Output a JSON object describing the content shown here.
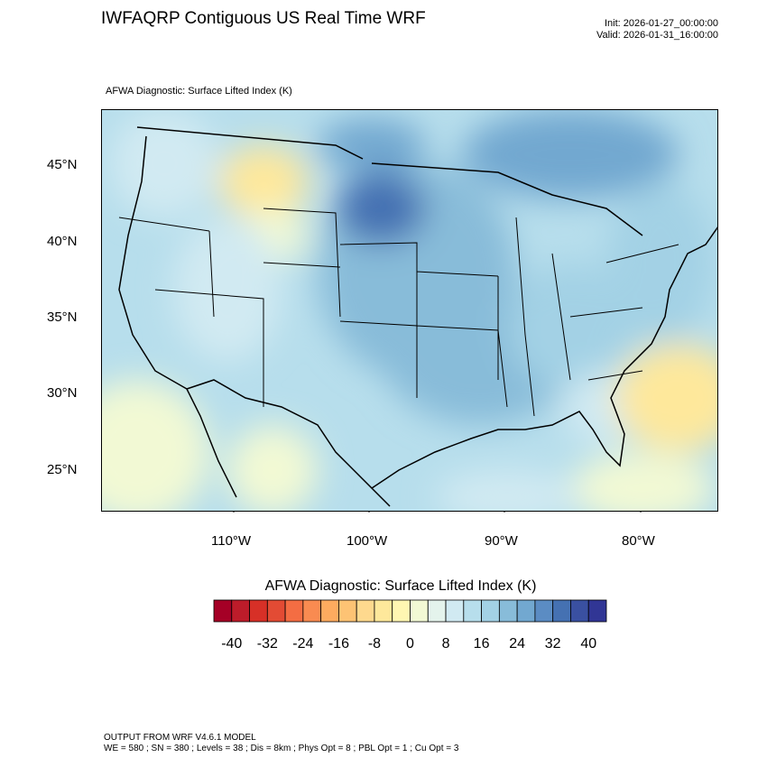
{
  "header": {
    "title": "IWFAQRP Contiguous US Real Time WRF",
    "init": "Init: 2026-01-27_00:00:00",
    "valid": "Valid: 2026-01-31_16:00:00",
    "subtitle": "AFWA Diagnostic: Surface Lifted Index   (K)"
  },
  "chart_data": {
    "type": "heatmap",
    "title": "AFWA Diagnostic: Surface Lifted Index (K)",
    "variable": "Surface Lifted Index",
    "units": "K",
    "lat_ticks": [
      "45°N",
      "40°N",
      "35°N",
      "30°N",
      "25°N"
    ],
    "lon_ticks": [
      "110°W",
      "100°W",
      "90°W",
      "80°W"
    ],
    "lat_range": [
      22,
      49
    ],
    "lon_range": [
      -120,
      -75
    ],
    "colorbar": {
      "title": "AFWA Diagnostic: Surface Lifted Index  (K)",
      "levels_min": -40,
      "levels_max": 40,
      "levels_step": 4,
      "labels": [
        "-40",
        "-32",
        "-24",
        "-16",
        "-8",
        "0",
        "8",
        "16",
        "24",
        "32",
        "40"
      ],
      "colors": [
        "#a50026",
        "#bd1c2a",
        "#d73027",
        "#e34b34",
        "#f46d43",
        "#f98b51",
        "#fdab5f",
        "#fdc374",
        "#fed98e",
        "#fee89b",
        "#fff7b2",
        "#f2f9d4",
        "#e4f3ec",
        "#d1eaf2",
        "#b7deec",
        "#a3d1e5",
        "#88bcd9",
        "#72a8d0",
        "#5b8cc3",
        "#4571b2",
        "#3a50a1",
        "#313695"
      ]
    }
  },
  "footer": {
    "line1": "OUTPUT FROM WRF V4.6.1 MODEL",
    "line2": "WE = 580 ; SN = 380 ; Levels = 38 ; Dis = 8km ; Phys Opt = 8 ; PBL Opt = 1 ; Cu Opt = 3"
  }
}
